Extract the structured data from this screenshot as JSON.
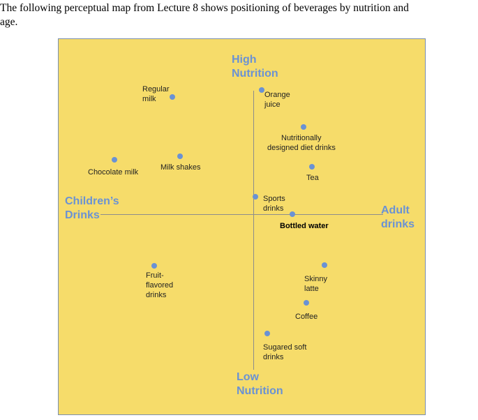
{
  "intro": {
    "line1": "The following perceptual map from Lecture 8 shows positioning of beverages by nutrition and",
    "line2": "age."
  },
  "map": {
    "poles": {
      "top_line1": "High",
      "top_line2": "Nutrition",
      "bottom_line1": "Low",
      "bottom_line2": "Nutrition",
      "left_line1": "Children’s",
      "left_line2": "Drinks",
      "right_line1": "Adult",
      "right_line2": "drinks"
    },
    "beverages": [
      {
        "line1": "Regular",
        "line2": "milk"
      },
      {
        "line1": "Orange",
        "line2": "juice"
      },
      {
        "line1": "Nutritionally",
        "line2": "designed diet drinks"
      },
      {
        "line1": "Chocolate milk"
      },
      {
        "line1": "Milk shakes"
      },
      {
        "line1": "Tea"
      },
      {
        "line1": "Sports",
        "line2": "drinks"
      },
      {
        "line1": "Bottled water"
      },
      {
        "line1": "Fruit-",
        "line2": "flavored",
        "line3": "drinks"
      },
      {
        "line1": "Skinny",
        "line2": "latte"
      },
      {
        "line1": "Coffee"
      },
      {
        "line1": "Sugared soft",
        "line2": "drinks"
      }
    ],
    "colors": {
      "background": "#f6dc6a",
      "accent": "#6a92d4",
      "axis": "#8c8c8c"
    }
  }
}
